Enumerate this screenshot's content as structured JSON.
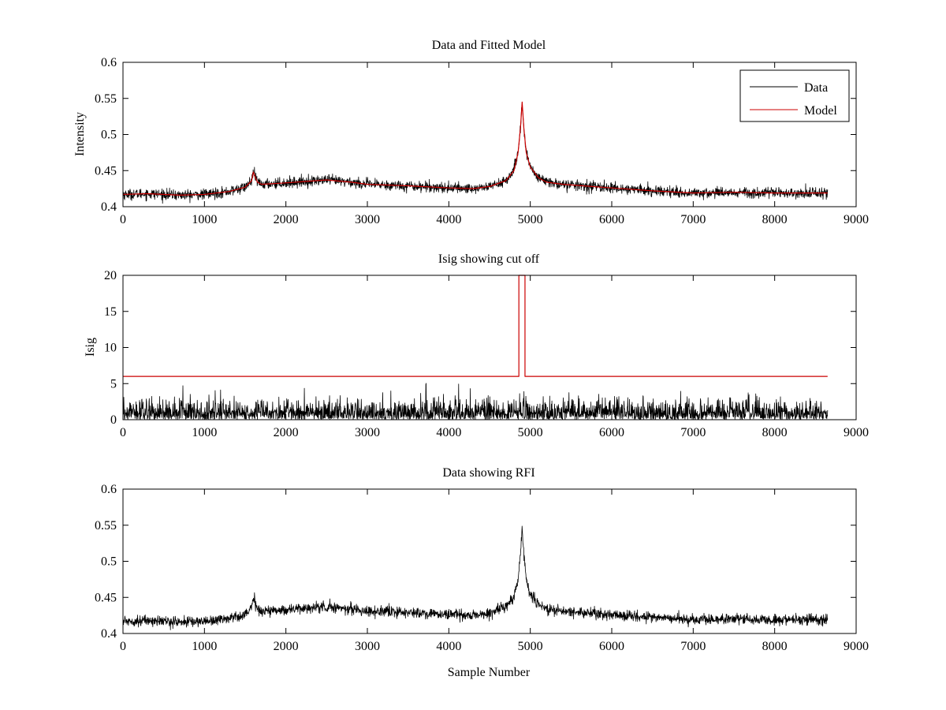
{
  "chart_data": [
    {
      "type": "line",
      "title": "Data and Fitted Model",
      "xlabel": "",
      "ylabel": "Intensity",
      "xlim": [
        0,
        9000
      ],
      "ylim": [
        0.4,
        0.6
      ],
      "xticks": [
        0,
        1000,
        2000,
        3000,
        4000,
        5000,
        6000,
        7000,
        8000,
        9000
      ],
      "yticks": [
        0.4,
        0.45,
        0.5,
        0.55,
        0.6
      ],
      "xtick_labels": [
        "0",
        "1000",
        "2000",
        "3000",
        "4000",
        "5000",
        "6000",
        "7000",
        "8000",
        "9000"
      ],
      "ytick_labels": [
        "0.4",
        "0.45",
        "0.5",
        "0.55",
        "0.6"
      ],
      "legend": {
        "position": "top-right",
        "entries": [
          "Data",
          "Model"
        ]
      },
      "series": [
        {
          "name": "Data",
          "color": "#000000",
          "x_range": [
            0,
            8650
          ],
          "noise_amplitude": 0.004,
          "baseline": {
            "x": [
              0,
              300,
              700,
              1000,
              1300,
              1500,
              1580,
              1600,
              1650,
              1700,
              2000,
              2500,
              2800,
              3000,
              3500,
              4000,
              4300,
              4500,
              4700,
              4800,
              4850,
              4880,
              4900,
              4920,
              4950,
              5000,
              5100,
              5200,
              5400,
              6000,
              6500,
              7000,
              7500,
              8000,
              8650
            ],
            "y": [
              0.417,
              0.418,
              0.416,
              0.417,
              0.421,
              0.427,
              0.436,
              0.448,
              0.434,
              0.431,
              0.433,
              0.437,
              0.434,
              0.431,
              0.429,
              0.426,
              0.425,
              0.428,
              0.436,
              0.45,
              0.475,
              0.51,
              0.545,
              0.51,
              0.475,
              0.455,
              0.44,
              0.434,
              0.431,
              0.426,
              0.422,
              0.419,
              0.42,
              0.419,
              0.419
            ]
          }
        },
        {
          "name": "Model",
          "color": "#cc0000",
          "x": [
            0,
            300,
            700,
            1000,
            1300,
            1500,
            1580,
            1600,
            1650,
            1700,
            2000,
            2500,
            2800,
            3000,
            3500,
            4000,
            4300,
            4500,
            4700,
            4800,
            4850,
            4880,
            4900,
            4920,
            4950,
            5000,
            5100,
            5200,
            5400,
            6000,
            6500,
            7000,
            7500,
            8000,
            8650
          ],
          "y": [
            0.417,
            0.418,
            0.416,
            0.417,
            0.421,
            0.427,
            0.436,
            0.448,
            0.434,
            0.431,
            0.433,
            0.437,
            0.434,
            0.431,
            0.429,
            0.426,
            0.425,
            0.428,
            0.436,
            0.45,
            0.475,
            0.51,
            0.545,
            0.51,
            0.475,
            0.455,
            0.44,
            0.434,
            0.431,
            0.426,
            0.422,
            0.419,
            0.42,
            0.419,
            0.419
          ]
        }
      ]
    },
    {
      "type": "line",
      "title": "Isig showing cut off",
      "xlabel": "",
      "ylabel": "Isig",
      "xlim": [
        0,
        9000
      ],
      "ylim": [
        0,
        20
      ],
      "xticks": [
        0,
        1000,
        2000,
        3000,
        4000,
        5000,
        6000,
        7000,
        8000,
        9000
      ],
      "yticks": [
        0,
        5,
        10,
        15,
        20
      ],
      "xtick_labels": [
        "0",
        "1000",
        "2000",
        "3000",
        "4000",
        "5000",
        "6000",
        "7000",
        "8000",
        "9000"
      ],
      "ytick_labels": [
        "0",
        "5",
        "10",
        "15",
        "20"
      ],
      "series": [
        {
          "name": "Isig",
          "color": "#000000",
          "x_range": [
            0,
            8650
          ],
          "noise_amplitude": 3.5
        },
        {
          "name": "Cut off",
          "color": "#cc0000",
          "x": [
            0,
            4860,
            4860,
            4935,
            4935,
            8650
          ],
          "y": [
            6,
            6,
            20,
            20,
            6,
            6
          ]
        }
      ]
    },
    {
      "type": "line",
      "title": "Data showing RFI",
      "xlabel": "Sample Number",
      "ylabel": "",
      "xlim": [
        0,
        9000
      ],
      "ylim": [
        0.4,
        0.6
      ],
      "xticks": [
        0,
        1000,
        2000,
        3000,
        4000,
        5000,
        6000,
        7000,
        8000,
        9000
      ],
      "yticks": [
        0.4,
        0.45,
        0.5,
        0.55,
        0.6
      ],
      "xtick_labels": [
        "0",
        "1000",
        "2000",
        "3000",
        "4000",
        "5000",
        "6000",
        "7000",
        "8000",
        "9000"
      ],
      "ytick_labels": [
        "0.4",
        "0.45",
        "0.5",
        "0.55",
        "0.6"
      ],
      "series": [
        {
          "name": "Data",
          "color": "#000000",
          "x_range": [
            0,
            8650
          ],
          "noise_amplitude": 0.004,
          "baseline": {
            "x": [
              0,
              300,
              700,
              1000,
              1300,
              1500,
              1580,
              1600,
              1650,
              1700,
              2000,
              2500,
              2800,
              3000,
              3500,
              4000,
              4300,
              4500,
              4700,
              4800,
              4850,
              4880,
              4900,
              4920,
              4950,
              5000,
              5100,
              5200,
              5400,
              6000,
              6500,
              7000,
              7500,
              8000,
              8650
            ],
            "y": [
              0.417,
              0.418,
              0.416,
              0.417,
              0.421,
              0.427,
              0.436,
              0.448,
              0.434,
              0.431,
              0.433,
              0.437,
              0.434,
              0.431,
              0.429,
              0.426,
              0.425,
              0.428,
              0.436,
              0.45,
              0.475,
              0.51,
              0.545,
              0.51,
              0.475,
              0.455,
              0.44,
              0.434,
              0.431,
              0.426,
              0.422,
              0.419,
              0.42,
              0.419,
              0.419
            ]
          }
        }
      ]
    }
  ]
}
